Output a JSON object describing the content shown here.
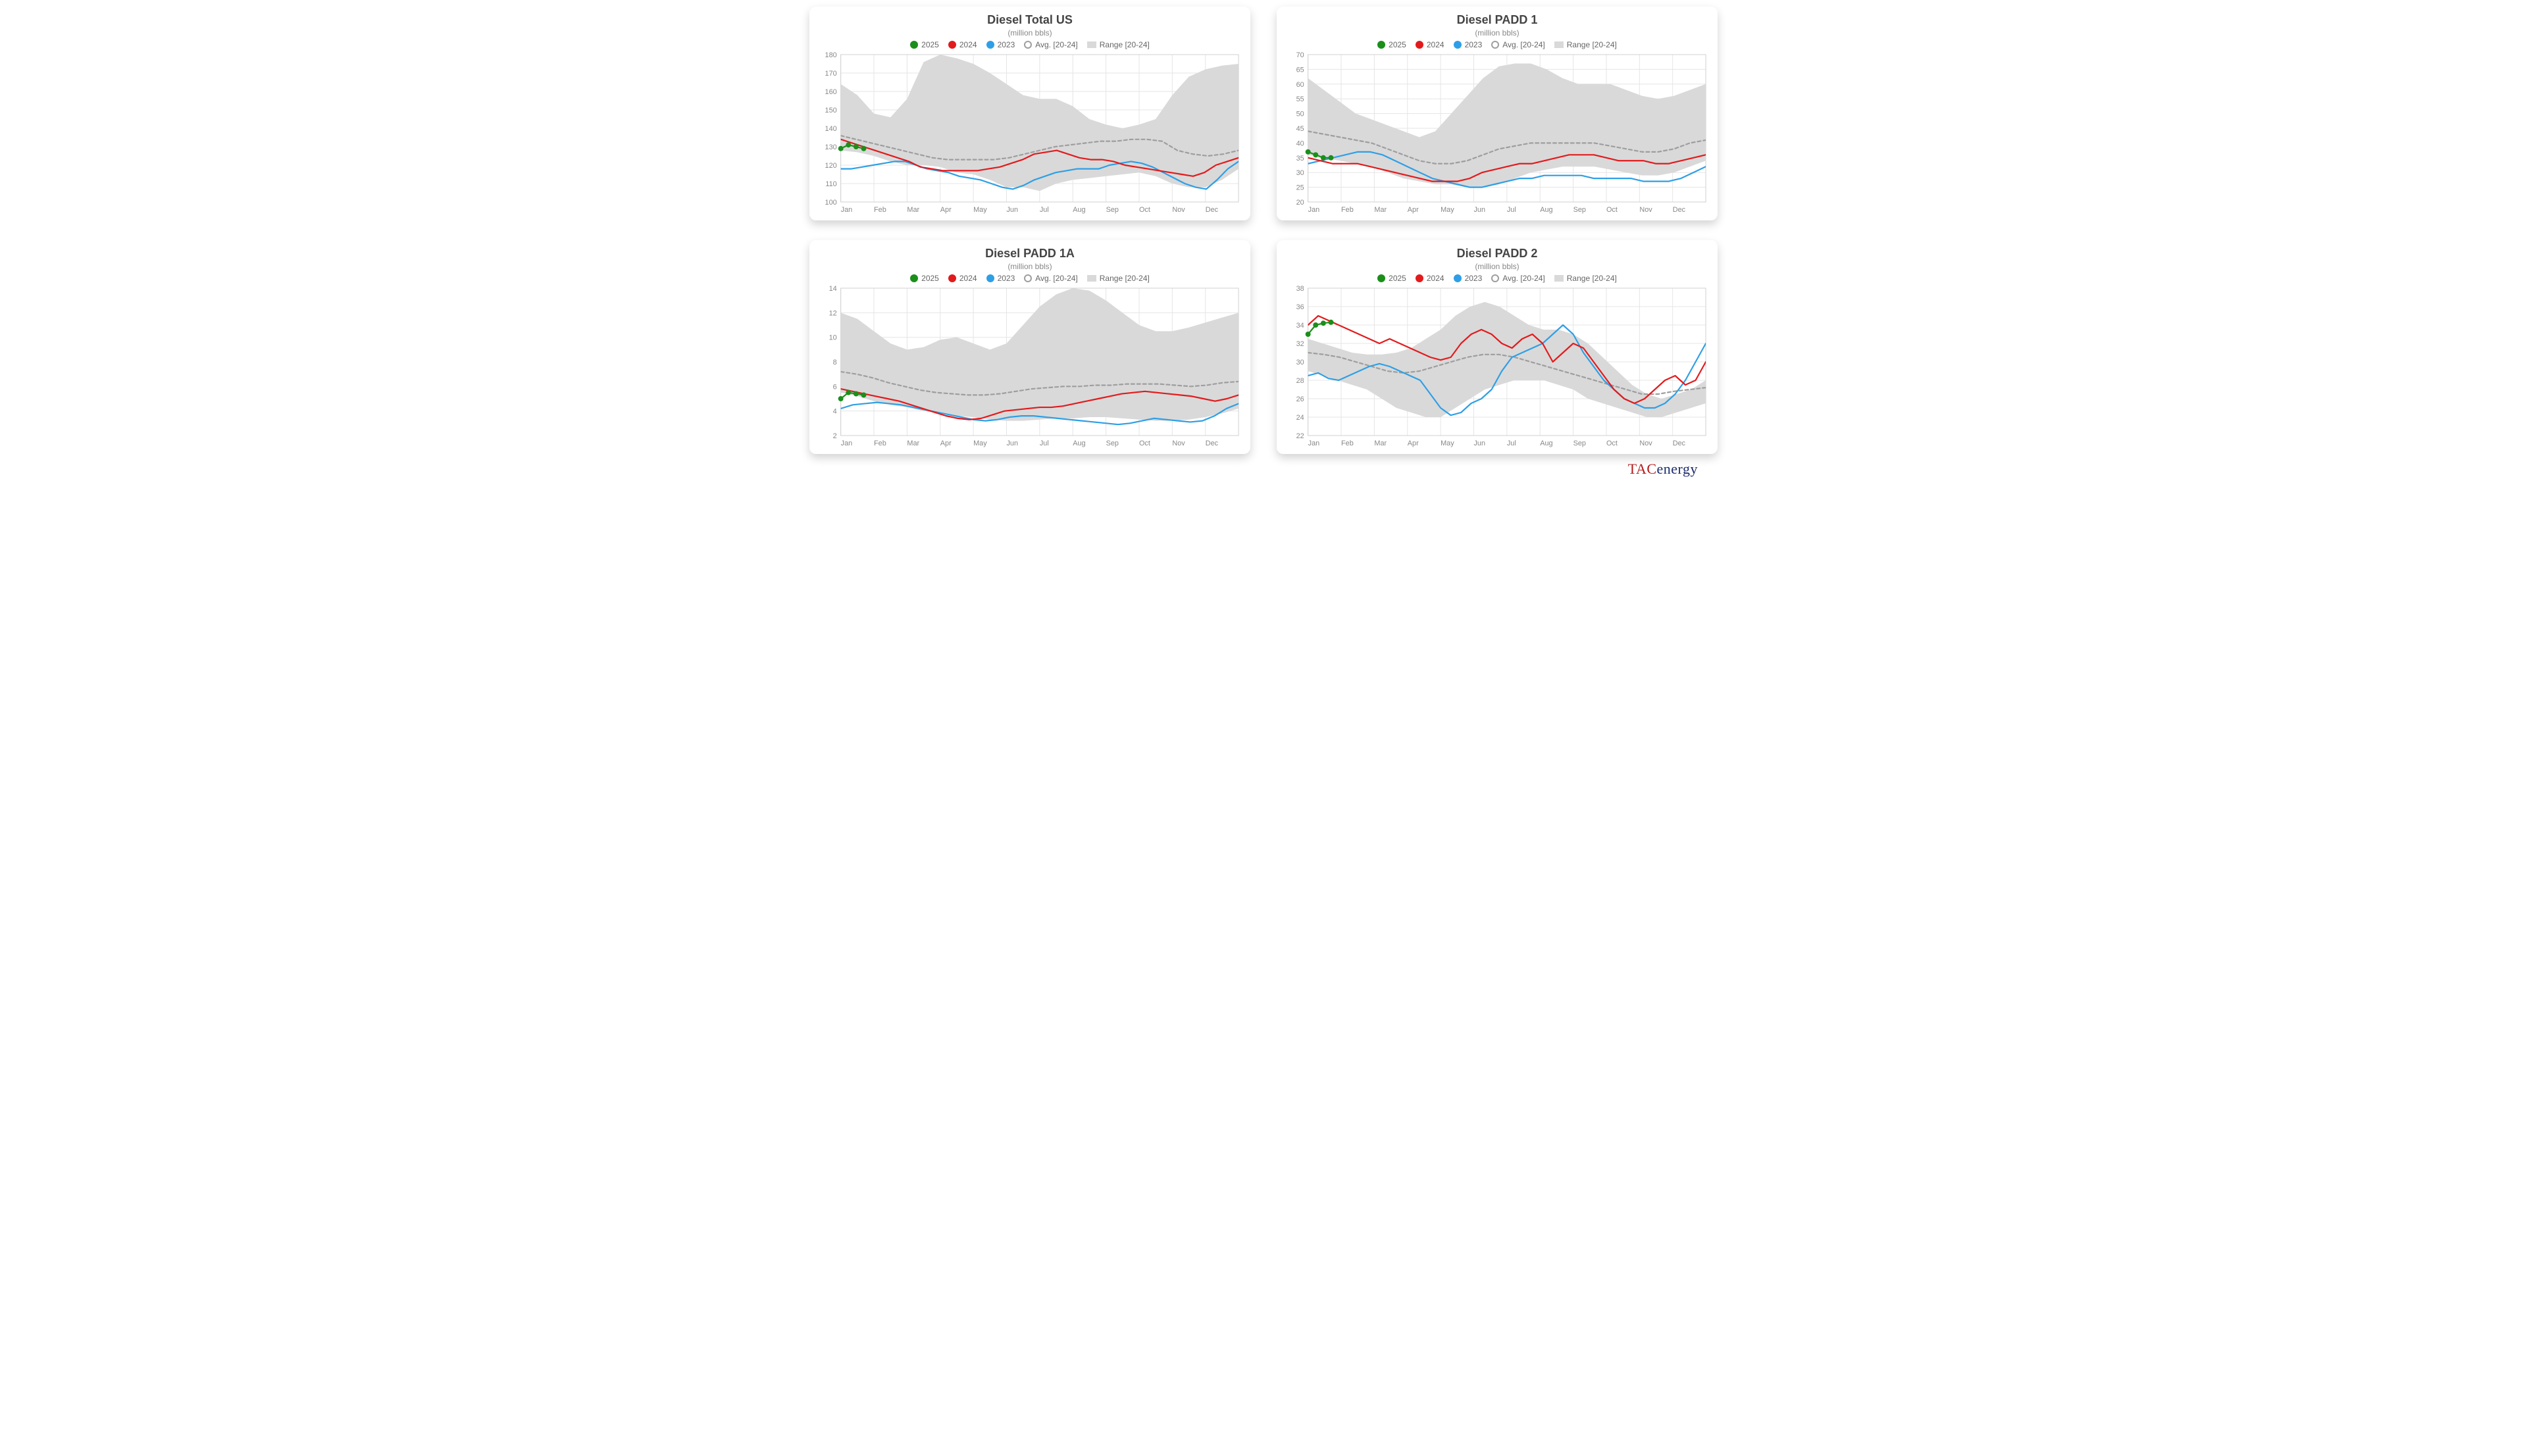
{
  "logo": {
    "part1": "TAC",
    "part2": "energy"
  },
  "legend_labels": {
    "y2025": "2025",
    "y2024": "2024",
    "y2023": "2023",
    "avg": "Avg. [20-24]",
    "range": "Range [20-24]"
  },
  "colors": {
    "y2025": "#1a8f1a",
    "y2024": "#e31a1c",
    "y2023": "#2e9fe6",
    "avg_stroke": "#9e9e9e",
    "range_fill": "#d9d9d9",
    "grid": "#e5e5e5",
    "axis_text": "#888888",
    "bg": "#ffffff"
  },
  "months": [
    "Jan",
    "Feb",
    "Mar",
    "Apr",
    "May",
    "Jun",
    "Jul",
    "Aug",
    "Sep",
    "Oct",
    "Nov",
    "Dec"
  ],
  "line_width": 2.2,
  "avg_dash": "5,4",
  "marker_radius": 4,
  "charts": [
    {
      "id": "total-us",
      "title": "Diesel Total US",
      "subtitle": "(million bbls)",
      "ylim": [
        100,
        180
      ],
      "ytick_step": 10,
      "range_upper": [
        164,
        158,
        148,
        146,
        156,
        176,
        180,
        178,
        175,
        170,
        164,
        158,
        156,
        156,
        152,
        145,
        142,
        140,
        142,
        145,
        158,
        168,
        172,
        174,
        175
      ],
      "range_lower": [
        128,
        127,
        125,
        122,
        120,
        120,
        119,
        116,
        115,
        112,
        108,
        108,
        106,
        110,
        112,
        113,
        114,
        115,
        116,
        114,
        110,
        108,
        108,
        112,
        118
      ],
      "avg": [
        136,
        134,
        132,
        130,
        128,
        126,
        124,
        123,
        123,
        123,
        123,
        124,
        126,
        128,
        130,
        131,
        132,
        133,
        133,
        134,
        134,
        133,
        128,
        126,
        125,
        126,
        128
      ],
      "y2024": [
        134,
        132,
        130,
        128,
        126,
        124,
        122,
        119,
        118,
        117,
        117,
        117,
        117,
        118,
        119,
        121,
        123,
        126,
        127,
        128,
        126,
        124,
        123,
        123,
        122,
        120,
        119,
        118,
        117,
        116,
        115,
        114,
        116,
        120,
        122,
        124
      ],
      "y2023": [
        118,
        118,
        119,
        120,
        121,
        122,
        122,
        120,
        118,
        117,
        116,
        114,
        113,
        112,
        110,
        108,
        107,
        109,
        112,
        114,
        116,
        117,
        118,
        118,
        118,
        120,
        121,
        122,
        121,
        119,
        116,
        113,
        110,
        108,
        107,
        112,
        118,
        122
      ],
      "y2025": [
        129,
        131,
        130,
        129
      ]
    },
    {
      "id": "padd1",
      "title": "Diesel PADD 1",
      "subtitle": "(million bbls)",
      "ylim": [
        20,
        70
      ],
      "ytick_step": 5,
      "range_upper": [
        62,
        58,
        54,
        50,
        48,
        46,
        44,
        42,
        44,
        50,
        56,
        62,
        66,
        67,
        67,
        65,
        62,
        60,
        60,
        60,
        58,
        56,
        55,
        56,
        58,
        60
      ],
      "range_lower": [
        36,
        35,
        34,
        33,
        32,
        30,
        28,
        27,
        26,
        26,
        25,
        25,
        26,
        28,
        30,
        31,
        32,
        32,
        32,
        31,
        30,
        29,
        29,
        30,
        32,
        34
      ],
      "avg": [
        44,
        43,
        42,
        41,
        40,
        38,
        36,
        34,
        33,
        33,
        34,
        36,
        38,
        39,
        40,
        40,
        40,
        40,
        40,
        39,
        38,
        37,
        37,
        38,
        40,
        41
      ],
      "y2024": [
        35,
        34,
        33,
        33,
        33,
        32,
        31,
        30,
        29,
        28,
        27,
        27,
        27,
        28,
        30,
        31,
        32,
        33,
        33,
        34,
        35,
        36,
        36,
        36,
        35,
        34,
        34,
        34,
        33,
        33,
        34,
        35,
        36
      ],
      "y2023": [
        33,
        34,
        35,
        36,
        37,
        37,
        36,
        34,
        32,
        30,
        28,
        27,
        26,
        25,
        25,
        26,
        27,
        28,
        28,
        29,
        29,
        29,
        29,
        28,
        28,
        28,
        28,
        27,
        27,
        27,
        28,
        30,
        32
      ],
      "y2025": [
        37,
        36,
        35,
        35
      ]
    },
    {
      "id": "padd1a",
      "title": "Diesel PADD 1A",
      "subtitle": "(million bbls)",
      "ylim": [
        2,
        14
      ],
      "ytick_step": 2,
      "range_upper": [
        12.0,
        11.5,
        10.5,
        9.5,
        9.0,
        9.2,
        9.8,
        10.0,
        9.5,
        9.0,
        9.5,
        11.0,
        12.5,
        13.5,
        14.0,
        13.8,
        13.0,
        12.0,
        11.0,
        10.5,
        10.5,
        10.8,
        11.2,
        11.6,
        12.0
      ],
      "range_lower": [
        5.5,
        5.2,
        4.8,
        4.5,
        4.3,
        4.0,
        3.8,
        3.6,
        3.5,
        3.3,
        3.2,
        3.2,
        3.3,
        3.4,
        3.4,
        3.5,
        3.5,
        3.4,
        3.3,
        3.2,
        3.2,
        3.3,
        3.5,
        3.8,
        4.2
      ],
      "avg": [
        7.2,
        7.0,
        6.7,
        6.3,
        6.0,
        5.7,
        5.5,
        5.4,
        5.3,
        5.3,
        5.4,
        5.6,
        5.8,
        5.9,
        6.0,
        6.0,
        6.1,
        6.1,
        6.2,
        6.2,
        6.2,
        6.1,
        6.0,
        6.1,
        6.3,
        6.4
      ],
      "y2024": [
        5.8,
        5.6,
        5.4,
        5.2,
        5.0,
        4.8,
        4.5,
        4.2,
        3.9,
        3.6,
        3.4,
        3.3,
        3.4,
        3.7,
        4.0,
        4.1,
        4.2,
        4.3,
        4.3,
        4.4,
        4.6,
        4.8,
        5.0,
        5.2,
        5.4,
        5.5,
        5.6,
        5.5,
        5.4,
        5.3,
        5.2,
        5.0,
        4.8,
        5.0,
        5.3
      ],
      "y2023": [
        4.2,
        4.5,
        4.6,
        4.7,
        4.6,
        4.5,
        4.3,
        4.1,
        3.9,
        3.7,
        3.5,
        3.3,
        3.2,
        3.3,
        3.5,
        3.6,
        3.6,
        3.5,
        3.4,
        3.3,
        3.2,
        3.1,
        3.0,
        2.9,
        3.0,
        3.2,
        3.4,
        3.3,
        3.2,
        3.1,
        3.2,
        3.6,
        4.2,
        4.6
      ],
      "y2025": [
        5.0,
        5.5,
        5.4,
        5.3
      ]
    },
    {
      "id": "padd2",
      "title": "Diesel PADD 2",
      "subtitle": "(million bbls)",
      "ylim": [
        22,
        38
      ],
      "ytick_step": 2,
      "range_upper": [
        32.5,
        32.0,
        31.5,
        31.0,
        30.8,
        30.8,
        31.0,
        31.5,
        32.5,
        33.5,
        35.0,
        36.0,
        36.5,
        36.0,
        35.0,
        34.0,
        33.5,
        33.5,
        33.0,
        32.0,
        30.5,
        29.0,
        27.5,
        26.5,
        26.0,
        26.5,
        27.0,
        28.0
      ],
      "range_lower": [
        29.0,
        28.5,
        28.0,
        27.5,
        27.0,
        26.0,
        25.0,
        24.5,
        24.0,
        24.0,
        25.0,
        26.0,
        27.0,
        27.5,
        28.0,
        28.0,
        28.0,
        27.5,
        27.0,
        26.0,
        25.5,
        25.0,
        24.5,
        24.0,
        24.0,
        24.5,
        25.0,
        25.5
      ],
      "avg": [
        31.0,
        30.8,
        30.5,
        30.0,
        29.5,
        29.0,
        28.8,
        29.0,
        29.5,
        30.0,
        30.5,
        30.8,
        30.8,
        30.5,
        30.0,
        29.5,
        29.0,
        28.5,
        28.0,
        27.5,
        27.0,
        26.5,
        26.5,
        26.8,
        27.0,
        27.2
      ],
      "y2024": [
        34.0,
        35.0,
        34.5,
        34.0,
        33.5,
        33.0,
        32.5,
        32.0,
        32.5,
        32.0,
        31.5,
        31.0,
        30.5,
        30.2,
        30.5,
        32.0,
        33.0,
        33.5,
        33.0,
        32.0,
        31.5,
        32.5,
        33.0,
        32.0,
        30.0,
        31.0,
        32.0,
        31.5,
        30.0,
        28.5,
        27.0,
        26.0,
        25.5,
        26.0,
        27.0,
        28.0,
        28.5,
        27.5,
        28.0,
        30.0
      ],
      "y2023": [
        28.5,
        28.8,
        28.2,
        28.0,
        28.5,
        29.0,
        29.5,
        29.8,
        29.5,
        29.0,
        28.5,
        28.0,
        26.5,
        25.0,
        24.2,
        24.5,
        25.5,
        26.0,
        27.0,
        29.0,
        30.5,
        31.0,
        31.5,
        32.0,
        33.0,
        34.0,
        33.0,
        31.0,
        29.5,
        28.0,
        27.0,
        26.0,
        25.5,
        25.0,
        25.0,
        25.5,
        26.5,
        28.0,
        30.0,
        32.0
      ],
      "y2025": [
        33.0,
        34.0,
        34.2,
        34.3
      ]
    }
  ]
}
